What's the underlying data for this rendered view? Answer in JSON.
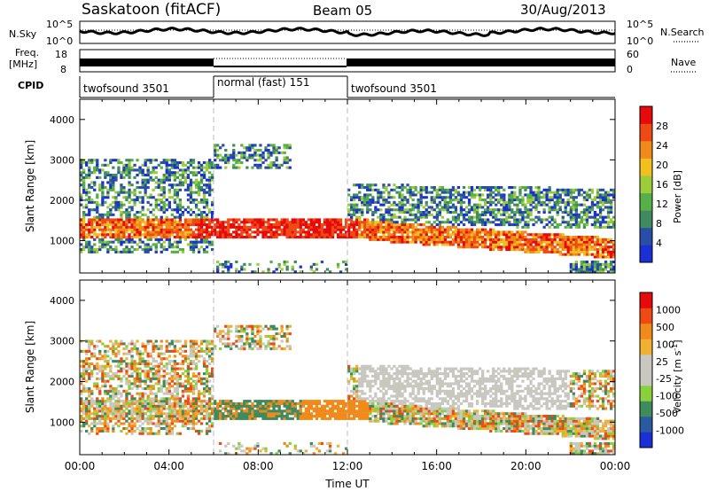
{
  "header": {
    "station": "Saskatoon (fitACF)",
    "beam": "Beam 05",
    "date": "30/Aug/2013"
  },
  "noise_panel": {
    "left_label": "N.Sky",
    "right_label": "N.Search",
    "left_ticks": [
      "10^5",
      "10^0"
    ],
    "right_ticks": [
      "10^5",
      "10^0"
    ]
  },
  "freq_panel": {
    "left_label_top": "Freq.",
    "left_label_bottom": "[MHz]",
    "right_label": "Nave",
    "left_ticks": [
      "18",
      "8"
    ],
    "right_ticks": [
      "60",
      "0"
    ]
  },
  "cpid": {
    "label": "CPID",
    "segments": [
      {
        "name": "twofsound 3501",
        "start_h": 0,
        "end_h": 6
      },
      {
        "name": "normal (fast) 151",
        "start_h": 6,
        "end_h": 12
      },
      {
        "name": "twofsound 3501",
        "start_h": 12,
        "end_h": 24
      }
    ]
  },
  "colors": {
    "power": [
      "#1a2fd6",
      "#2a4ea8",
      "#3f8a5e",
      "#56b04a",
      "#9ccc3a",
      "#f0c020",
      "#f08a1a",
      "#f04a14",
      "#e60a0a"
    ],
    "velocity": [
      "#e60a0a",
      "#f04a14",
      "#f08a1a",
      "#f0b030",
      "#c8c8c0",
      "#c8c8c0",
      "#8ad03a",
      "#3f8a5e",
      "#2a5aa0",
      "#1a2fd6"
    ]
  },
  "chart_data": [
    {
      "type": "heatmap",
      "quantity": "power",
      "ylabel": "Slant Range [km]",
      "ylim": [
        200,
        4500
      ],
      "yticks": [
        "1000",
        "2000",
        "3000",
        "4000"
      ],
      "xlim": [
        0,
        24
      ],
      "colorbar_label": "Power [dB]",
      "colorbar_ticks": [
        "4",
        "8",
        "12",
        "16",
        "20",
        "24",
        "28"
      ]
    },
    {
      "type": "heatmap",
      "quantity": "velocity",
      "ylabel": "Slant Range [km]",
      "ylim": [
        200,
        4500
      ],
      "yticks": [
        "1000",
        "2000",
        "3000",
        "4000"
      ],
      "xlim": [
        0,
        24
      ],
      "xlabel": "Time UT",
      "xticks": [
        "00:00",
        "04:00",
        "08:00",
        "12:00",
        "16:00",
        "20:00",
        "00:00"
      ],
      "colorbar_label": "Velocity [m s",
      "colorbar_label_sup": "-1",
      "colorbar_label_end": "]",
      "colorbar_ticks": [
        "1000",
        "500",
        "100",
        "25",
        "-25",
        "-100",
        "-500",
        "-1000"
      ]
    }
  ]
}
